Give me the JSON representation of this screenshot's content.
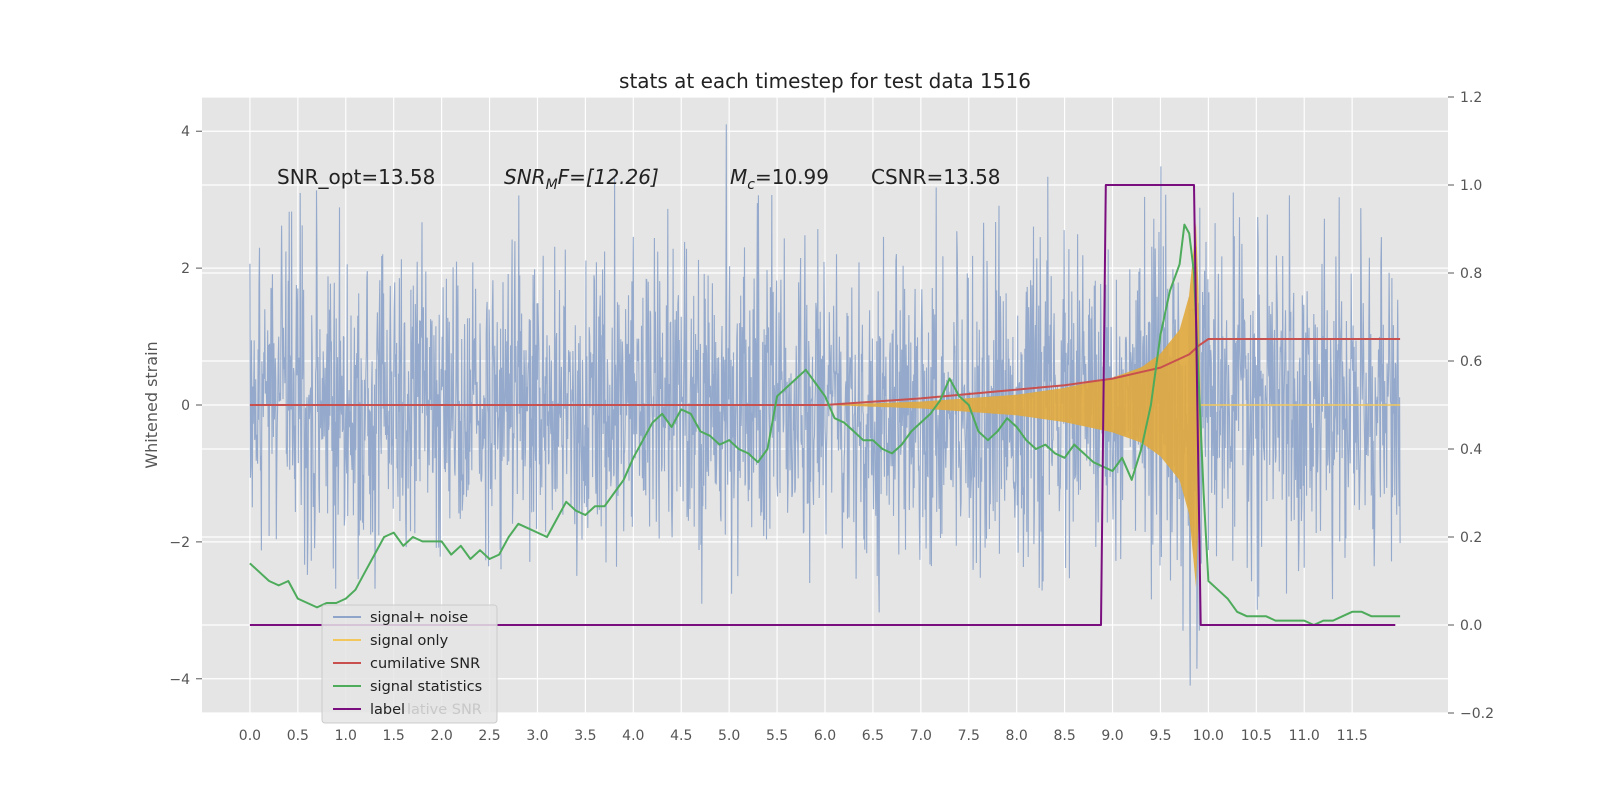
{
  "chart_data": {
    "type": "line",
    "title": "stats at each timestep for test data 1516",
    "ylabel": "Whitened strain",
    "xlabel": "",
    "xlim": [
      -0.5,
      12.5
    ],
    "ylim": [
      -4.5,
      4.5
    ],
    "y2lim": [
      -0.2,
      1.2
    ],
    "grid": true,
    "legend_placement": "lower-left",
    "x_ticks": [
      "0.0",
      "0.5",
      "1.0",
      "1.5",
      "2.0",
      "2.5",
      "3.0",
      "3.5",
      "4.0",
      "4.5",
      "5.0",
      "5.5",
      "6.0",
      "6.5",
      "7.0",
      "7.5",
      "8.0",
      "8.5",
      "9.0",
      "9.5",
      "10.0",
      "10.5",
      "11.0",
      "11.5"
    ],
    "y_ticks": [
      "4",
      "2",
      "0",
      "−2",
      "−4"
    ],
    "y2_ticks": [
      "1.2",
      "1.0",
      "0.8",
      "0.6",
      "0.4",
      "0.2",
      "0.0",
      "−0.2"
    ],
    "annotations": {
      "snr_opt": "SNR_opt=13.58",
      "snr_mf_base": "SNR",
      "snr_mf_sub": "M",
      "snr_mf_rest": "F=[12.26]",
      "mc_base": "M",
      "mc_sub": "c",
      "mc_rest": "=10.99",
      "csnr": "CSNR=13.58"
    },
    "legend": [
      "signal+ noise",
      "signal only",
      "cumilative SNR",
      "signal statistics",
      "label"
    ],
    "legend_ghost_text": "lative SNR",
    "colors": {
      "noise": "#8fa5c9",
      "signal": "#e0a83d",
      "signal_legend": "#f2c75c",
      "cumsnr": "#c8504f",
      "stats": "#4dab5b",
      "label": "#7a0e7e",
      "plot_bg": "#e5e5e5",
      "grid": "#ffffff"
    },
    "series": [
      {
        "name": "signal+ noise",
        "axis": "left",
        "envelope_amplitude": 2.0,
        "peak_abs": 4.1
      },
      {
        "name": "signal only",
        "axis": "left",
        "x": [
          6.0,
          7.0,
          8.0,
          8.5,
          9.0,
          9.3,
          9.5,
          9.7,
          9.8,
          9.88,
          9.92
        ],
        "envelope": [
          0.0,
          0.05,
          0.15,
          0.25,
          0.4,
          0.55,
          0.75,
          1.1,
          1.6,
          2.8,
          0.0
        ]
      },
      {
        "name": "cumilative SNR",
        "axis": "right",
        "x": [
          0.0,
          6.0,
          7.0,
          8.0,
          8.5,
          9.0,
          9.5,
          9.8,
          9.9,
          10.0,
          12.0
        ],
        "values": [
          0.5,
          0.5,
          0.515,
          0.535,
          0.545,
          0.56,
          0.585,
          0.615,
          0.635,
          0.65,
          0.65
        ]
      },
      {
        "name": "signal statistics",
        "axis": "right",
        "x": [
          0.0,
          0.1,
          0.2,
          0.3,
          0.4,
          0.5,
          0.6,
          0.7,
          0.8,
          0.9,
          1.0,
          1.1,
          1.2,
          1.3,
          1.4,
          1.5,
          1.6,
          1.7,
          1.8,
          1.9,
          2.0,
          2.1,
          2.2,
          2.3,
          2.4,
          2.5,
          2.6,
          2.7,
          2.8,
          2.9,
          3.0,
          3.1,
          3.2,
          3.3,
          3.4,
          3.5,
          3.6,
          3.7,
          3.8,
          3.9,
          4.0,
          4.1,
          4.2,
          4.3,
          4.4,
          4.5,
          4.6,
          4.7,
          4.8,
          4.9,
          5.0,
          5.1,
          5.2,
          5.3,
          5.4,
          5.5,
          5.6,
          5.7,
          5.8,
          5.9,
          6.0,
          6.1,
          6.2,
          6.3,
          6.4,
          6.5,
          6.6,
          6.7,
          6.8,
          6.9,
          7.0,
          7.1,
          7.2,
          7.3,
          7.4,
          7.5,
          7.6,
          7.7,
          7.8,
          7.9,
          8.0,
          8.1,
          8.2,
          8.3,
          8.4,
          8.5,
          8.6,
          8.7,
          8.8,
          8.9,
          9.0,
          9.1,
          9.2,
          9.3,
          9.4,
          9.5,
          9.6,
          9.7,
          9.75,
          9.8,
          9.85,
          9.9,
          9.95,
          10.0,
          10.1,
          10.2,
          10.3,
          10.4,
          10.5,
          10.6,
          10.7,
          10.8,
          10.9,
          11.0,
          11.1,
          11.2,
          11.3,
          11.4,
          11.5,
          11.6,
          11.7,
          11.8,
          11.9,
          12.0
        ],
        "values": [
          0.14,
          0.12,
          0.1,
          0.09,
          0.1,
          0.06,
          0.05,
          0.04,
          0.05,
          0.05,
          0.06,
          0.08,
          0.12,
          0.16,
          0.2,
          0.21,
          0.18,
          0.2,
          0.19,
          0.19,
          0.19,
          0.16,
          0.18,
          0.15,
          0.17,
          0.15,
          0.16,
          0.2,
          0.23,
          0.22,
          0.21,
          0.2,
          0.24,
          0.28,
          0.26,
          0.25,
          0.27,
          0.27,
          0.3,
          0.33,
          0.38,
          0.42,
          0.46,
          0.48,
          0.45,
          0.49,
          0.48,
          0.44,
          0.43,
          0.41,
          0.42,
          0.4,
          0.39,
          0.37,
          0.4,
          0.52,
          0.54,
          0.56,
          0.58,
          0.55,
          0.52,
          0.47,
          0.46,
          0.44,
          0.42,
          0.42,
          0.4,
          0.39,
          0.41,
          0.44,
          0.46,
          0.48,
          0.51,
          0.56,
          0.52,
          0.5,
          0.44,
          0.42,
          0.44,
          0.47,
          0.45,
          0.42,
          0.4,
          0.41,
          0.39,
          0.38,
          0.41,
          0.39,
          0.37,
          0.36,
          0.35,
          0.38,
          0.33,
          0.4,
          0.5,
          0.66,
          0.76,
          0.82,
          0.91,
          0.89,
          0.8,
          0.55,
          0.3,
          0.1,
          0.08,
          0.06,
          0.03,
          0.02,
          0.02,
          0.02,
          0.01,
          0.01,
          0.01,
          0.01,
          0.0,
          0.01,
          0.01,
          0.02,
          0.03,
          0.03,
          0.02,
          0.02,
          0.02,
          0.02
        ]
      },
      {
        "name": "label",
        "axis": "right",
        "x": [
          0.0,
          8.88,
          8.93,
          9.85,
          9.92,
          11.95
        ],
        "values": [
          0.0,
          0.0,
          1.0,
          1.0,
          0.0,
          0.0
        ]
      }
    ]
  }
}
